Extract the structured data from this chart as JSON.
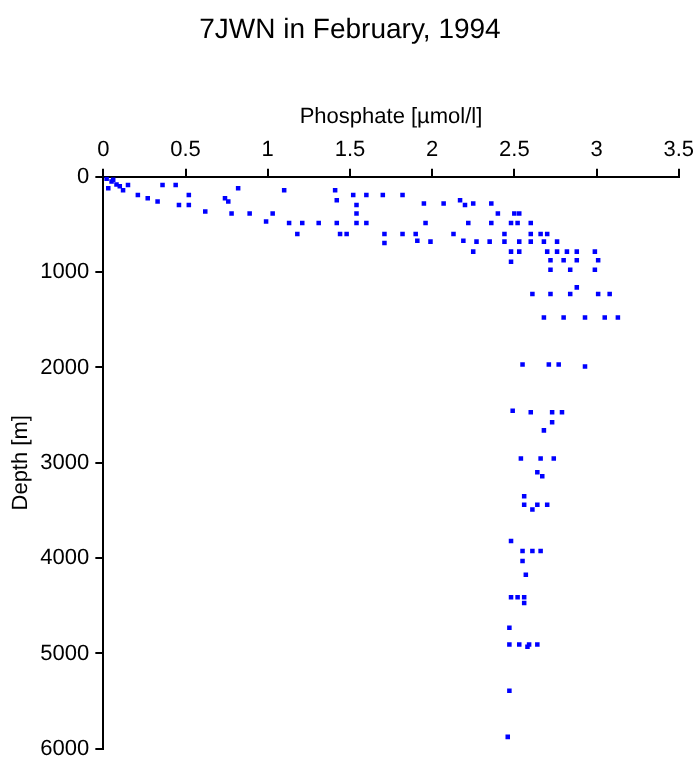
{
  "chart_data": {
    "type": "scatter",
    "title": "7JWN in February, 1994",
    "xlabel": "Phosphate [µmol/l]",
    "ylabel": "Depth [m]",
    "xlim": [
      0,
      3.5
    ],
    "xticks": [
      0,
      0.5,
      1,
      1.5,
      2,
      2.5,
      3,
      3.5
    ],
    "ylim": [
      6000,
      0
    ],
    "yticks": [
      0,
      1000,
      2000,
      3000,
      4000,
      5000,
      6000
    ],
    "grid": false,
    "legend": false,
    "marker": "square",
    "series": [
      {
        "color": "#0000ff",
        "x": [
          0.02,
          0.05,
          0.08,
          0.1,
          0.03,
          0.12,
          0.06,
          0.15,
          0.21,
          0.27,
          0.36,
          0.44,
          0.33,
          0.52,
          0.52,
          0.46,
          0.62,
          0.74,
          0.76,
          0.82,
          0.78,
          0.89,
          1.03,
          0.99,
          1.1,
          1.13,
          1.21,
          1.31,
          1.18,
          1.41,
          1.42,
          1.42,
          1.44,
          1.48,
          1.52,
          1.54,
          1.54,
          1.54,
          1.6,
          1.6,
          1.7,
          1.71,
          1.71,
          1.82,
          1.82,
          1.9,
          1.91,
          1.95,
          1.96,
          1.99,
          2.07,
          2.13,
          2.17,
          2.19,
          2.2,
          2.22,
          2.25,
          2.25,
          2.27,
          2.36,
          2.36,
          2.35,
          2.4,
          2.44,
          2.48,
          2.44,
          2.5,
          2.48,
          2.48,
          2.53,
          2.52,
          2.53,
          2.53,
          2.6,
          2.6,
          2.6,
          2.66,
          2.68,
          2.7,
          2.7,
          2.76,
          2.76,
          2.82,
          2.72,
          2.8,
          2.88,
          3.01,
          2.72,
          2.84,
          2.99,
          2.99,
          2.88,
          2.88,
          2.61,
          2.72,
          2.84,
          3.01,
          3.08,
          2.68,
          2.8,
          2.93,
          3.05,
          3.13,
          2.55,
          2.71,
          2.77,
          2.93,
          2.49,
          2.6,
          2.73,
          2.79,
          2.73,
          2.68,
          2.54,
          2.66,
          2.74,
          2.64,
          2.67,
          2.56,
          2.56,
          2.64,
          2.7,
          2.61,
          2.48,
          2.55,
          2.61,
          2.66,
          2.55,
          2.57,
          2.48,
          2.52,
          2.56,
          2.56,
          2.47,
          2.47,
          2.53,
          2.59,
          2.64,
          2.58,
          2.47,
          2.46
        ],
        "values": [
          20,
          50,
          80,
          100,
          120,
          140,
          30,
          85,
          190,
          225,
          85,
          85,
          260,
          190,
          295,
          295,
          365,
          225,
          260,
          120,
          385,
          385,
          385,
          470,
          140,
          485,
          485,
          485,
          600,
          140,
          245,
          485,
          600,
          600,
          190,
          295,
          385,
          485,
          190,
          485,
          190,
          600,
          695,
          190,
          600,
          600,
          670,
          280,
          485,
          680,
          280,
          600,
          245,
          670,
          295,
          485,
          280,
          785,
          680,
          280,
          485,
          680,
          385,
          600,
          485,
          680,
          385,
          785,
          890,
          385,
          485,
          680,
          785,
          600,
          680,
          485,
          600,
          680,
          600,
          785,
          680,
          785,
          785,
          875,
          875,
          875,
          875,
          975,
          975,
          975,
          785,
          785,
          1160,
          1230,
          1230,
          1230,
          1230,
          1230,
          1475,
          1475,
          1475,
          1475,
          1475,
          1970,
          1970,
          1970,
          1990,
          2455,
          2470,
          2470,
          2470,
          2575,
          2660,
          2955,
          2955,
          2955,
          3100,
          3140,
          3350,
          3440,
          3440,
          3440,
          3490,
          3820,
          3925,
          3925,
          3925,
          4030,
          4175,
          4410,
          4410,
          4410,
          4470,
          4730,
          4905,
          4905,
          4905,
          4905,
          4930,
          5390,
          5875
        ]
      }
    ]
  }
}
